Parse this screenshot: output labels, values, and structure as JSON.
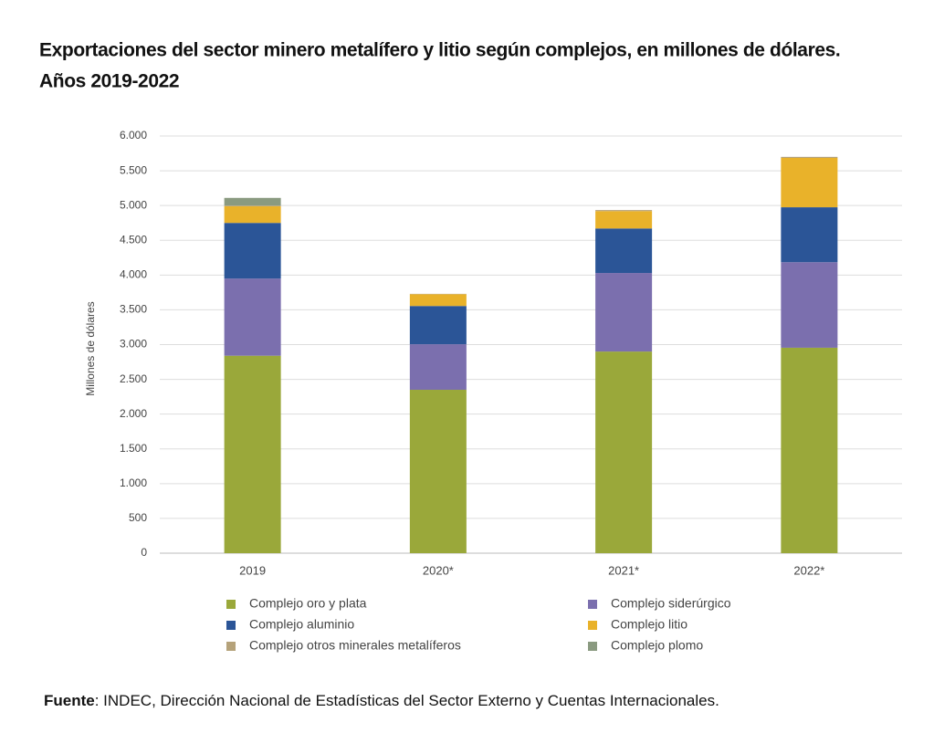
{
  "chart_data": {
    "type": "stacked-bar",
    "title": [
      "Exportaciones del sector minero metalífero y litio según complejos, en millones de dólares.",
      "Años 2019-2022"
    ],
    "y_label": "Millones de dólares",
    "categories": [
      "2019",
      "2020*",
      "2021*",
      "2022*"
    ],
    "series": [
      {
        "name": "Complejo oro y plata",
        "color": "#9aa83a",
        "values": [
          2840,
          2350,
          2900,
          2955
        ]
      },
      {
        "name": "Complejo siderúrgico",
        "color": "#7b6fae",
        "values": [
          1110,
          655,
          1130,
          1230
        ]
      },
      {
        "name": "Complejo aluminio",
        "color": "#2b5597",
        "values": [
          800,
          550,
          640,
          790
        ]
      },
      {
        "name": "Complejo litio",
        "color": "#e9b22a",
        "values": [
          240,
          170,
          250,
          710
        ]
      },
      {
        "name": "Complejo otros minerales metalíferos",
        "color": "#b5a27a",
        "values": [
          10,
          5,
          15,
          15
        ]
      },
      {
        "name": "Complejo plomo",
        "color": "#8a9a80",
        "values": [
          110,
          0,
          0,
          0
        ]
      }
    ],
    "ylim": [
      0,
      6000
    ],
    "yticks": [
      0,
      500,
      {
        "value": 1000,
        "label": "1.000"
      },
      {
        "value": 1500,
        "label": "1.500"
      },
      {
        "value": 2000,
        "label": "2.000"
      },
      {
        "value": 2500,
        "label": "2.500"
      },
      {
        "value": 3000,
        "label": "3.000"
      },
      {
        "value": 3500,
        "label": "3.500"
      },
      {
        "value": 4000,
        "label": "4.000"
      },
      {
        "value": 4500,
        "label": "4.500"
      },
      {
        "value": 5000,
        "label": "5.000"
      },
      {
        "value": 5500,
        "label": "5.500"
      },
      {
        "value": 6000,
        "label": "6.000"
      }
    ],
    "grid": true,
    "source": {
      "label": "Fuente",
      "text": ": INDEC, Dirección Nacional de Estadísticas del Sector Externo y Cuentas Internacionales."
    }
  }
}
